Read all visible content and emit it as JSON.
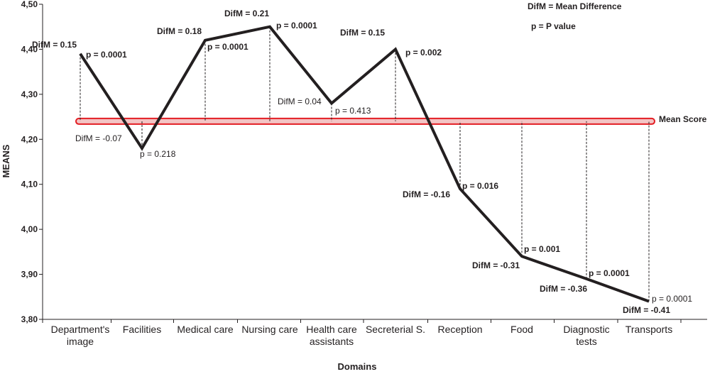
{
  "chart_data": {
    "type": "line",
    "title": "",
    "xlabel": "Domains",
    "ylabel": "MEANS",
    "ylim": [
      3.8,
      4.5
    ],
    "yticks": [
      "3,80",
      "3,90",
      "4,00",
      "4,10",
      "4,20",
      "4,30",
      "4,40",
      "4,50"
    ],
    "categories": [
      [
        "Department's",
        "image"
      ],
      [
        "Facilities"
      ],
      [
        "Medical care"
      ],
      [
        "Nursing care"
      ],
      [
        "Health care",
        "assistants"
      ],
      [
        "Secreterial S."
      ],
      [
        "Reception"
      ],
      [
        "Food"
      ],
      [
        "Diagnostic",
        "tests"
      ],
      [
        "Transports"
      ]
    ],
    "values": [
      4.39,
      4.18,
      4.42,
      4.45,
      4.28,
      4.4,
      4.09,
      3.94,
      3.89,
      3.84
    ],
    "mean_score": {
      "value": 4.24,
      "label": "Mean Score",
      "color": "#e31e24"
    },
    "line_color": "#231f20",
    "annotations": [
      {
        "difm": "DifM = 0.15",
        "p": "p = 0.0001",
        "difm_bold": true,
        "p_bold": true
      },
      {
        "difm": "DifM = -0.07",
        "p": "p = 0.218",
        "difm_bold": false,
        "p_bold": false
      },
      {
        "difm": "DifM = 0.18",
        "p": "p = 0.0001",
        "difm_bold": true,
        "p_bold": true
      },
      {
        "difm": "DifM = 0.21",
        "p": "p = 0.0001",
        "difm_bold": true,
        "p_bold": true
      },
      {
        "difm": "DifM = 0.04",
        "p": "p = 0.413",
        "difm_bold": false,
        "p_bold": false
      },
      {
        "difm": "DifM = 0.15",
        "p": "p = 0.002",
        "difm_bold": true,
        "p_bold": true
      },
      {
        "difm": "DifM = -0.16",
        "p": "p = 0.016",
        "difm_bold": true,
        "p_bold": true
      },
      {
        "difm": "DifM = -0.31",
        "p": "p = 0.001",
        "difm_bold": true,
        "p_bold": true
      },
      {
        "difm": "DifM = -0.36",
        "p": "p = 0.0001",
        "difm_bold": true,
        "p_bold": true
      },
      {
        "difm": "DifM = -0.41",
        "p": "p = 0.0001",
        "difm_bold": true,
        "p_bold": false
      }
    ],
    "legend": [
      "DifM = Mean Difference",
      "p = P value"
    ],
    "grid": false
  }
}
